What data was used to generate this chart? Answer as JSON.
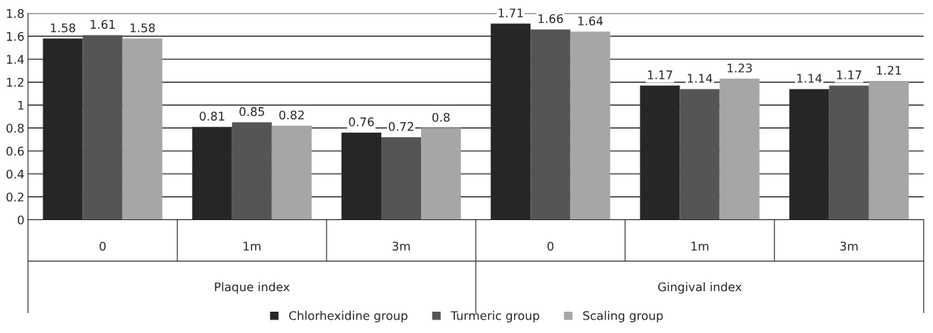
{
  "chart_data": {
    "type": "bar",
    "categories": [
      "0",
      "1m",
      "3m",
      "0",
      "1m",
      "3m"
    ],
    "series": [
      {
        "name": "Chlorhexidine group",
        "color": "#262626",
        "values": [
          1.58,
          0.81,
          0.76,
          1.71,
          1.17,
          1.14
        ]
      },
      {
        "name": "Turmeric group",
        "color": "#555555",
        "values": [
          1.61,
          0.85,
          0.72,
          1.66,
          1.14,
          1.17
        ]
      },
      {
        "name": "Scaling group",
        "color": "#a6a6a6",
        "values": [
          1.58,
          0.82,
          0.8,
          1.64,
          1.23,
          1.21
        ]
      }
    ],
    "annotations": [
      "Plaque index",
      "Gingival index"
    ],
    "ylim": [
      0,
      1.8
    ],
    "yticks": [
      0,
      0.2,
      0.4,
      0.6,
      0.8,
      1,
      1.2,
      1.4,
      1.6,
      1.8
    ],
    "grid": "y",
    "legend": "bottom",
    "data_labels": true
  }
}
